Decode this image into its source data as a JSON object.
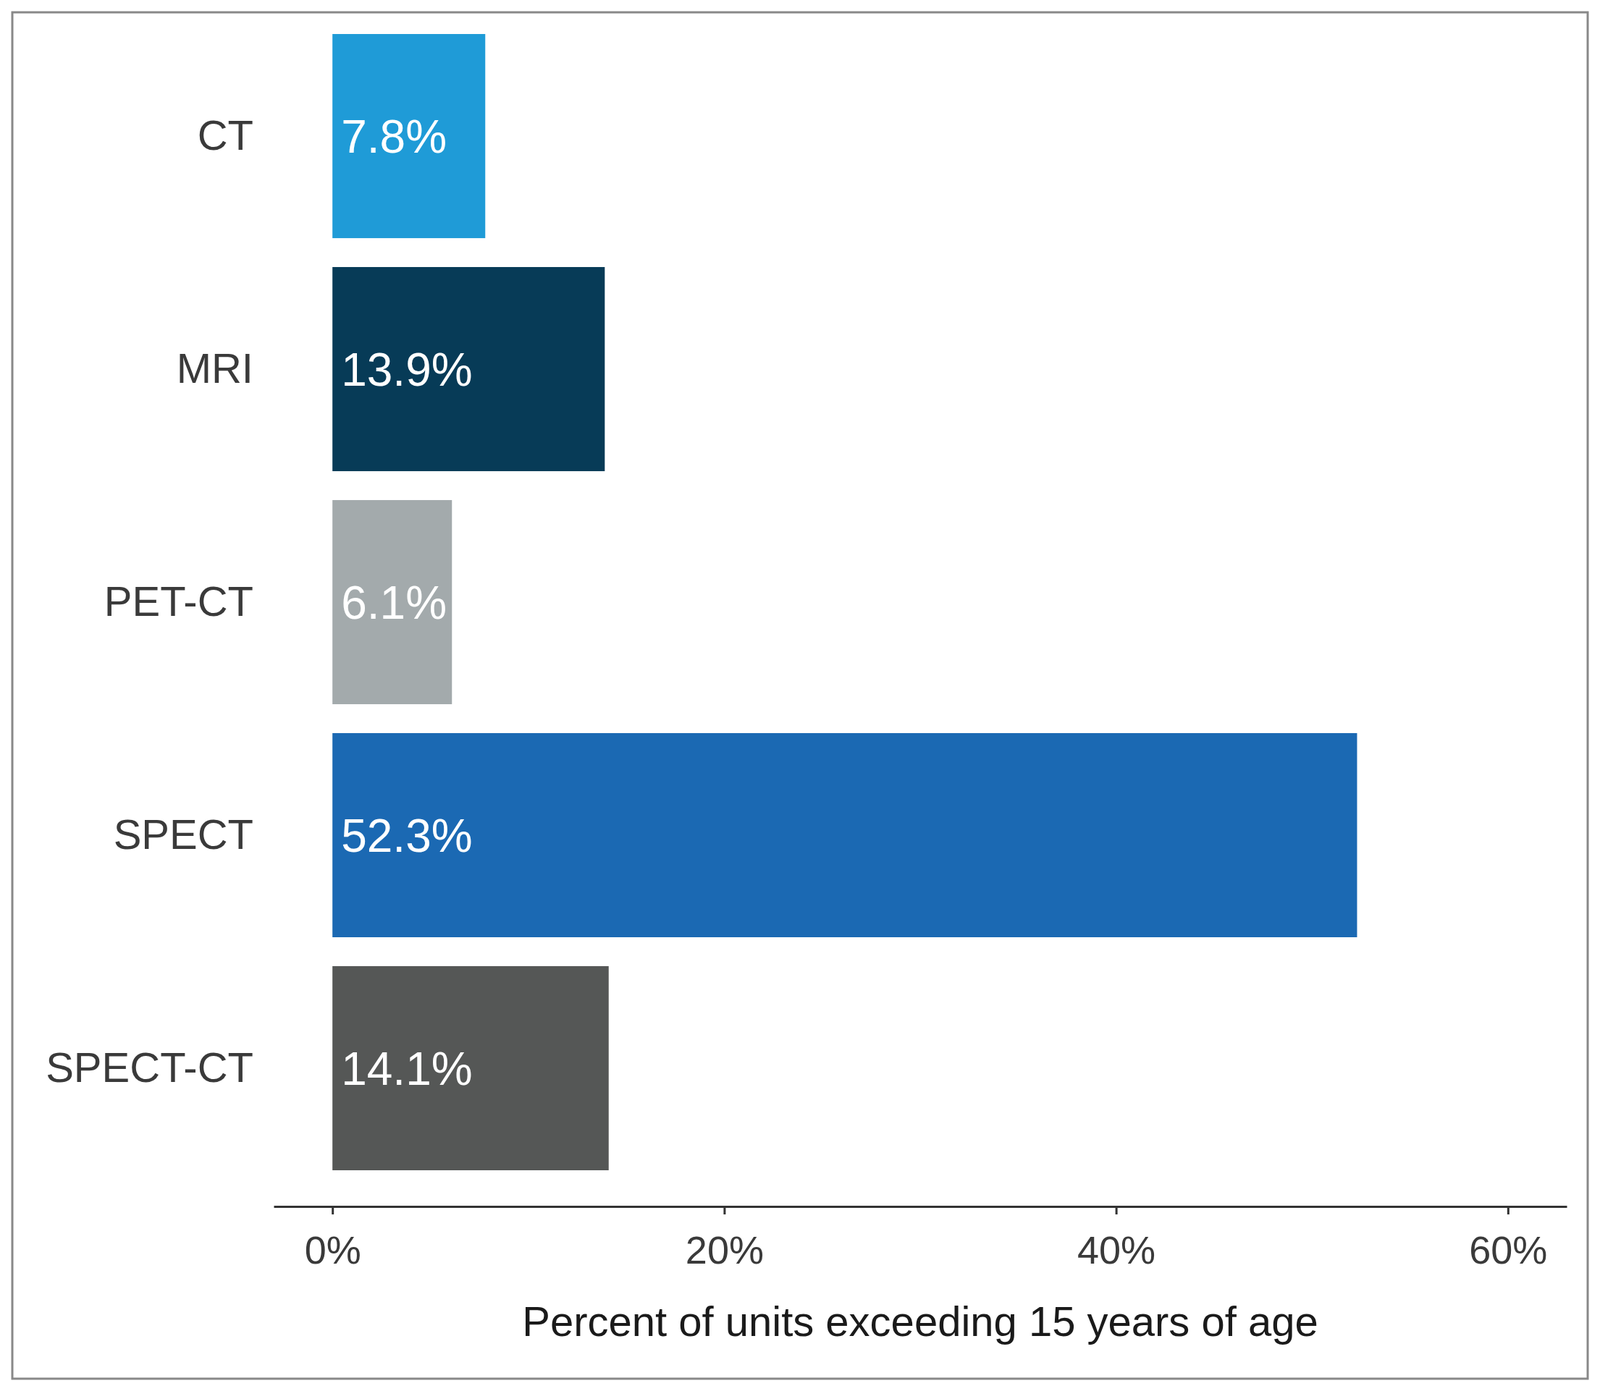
{
  "chart_data": {
    "type": "bar",
    "orientation": "horizontal",
    "categories": [
      "CT",
      "MRI",
      "PET-CT",
      "SPECT",
      "SPECT-CT"
    ],
    "values": [
      7.8,
      13.9,
      6.1,
      52.3,
      14.1
    ],
    "value_labels": [
      "7.8%",
      "13.9%",
      "6.1%",
      "52.3%",
      "14.1%"
    ],
    "colors": [
      "#1f9bd7",
      "#073b57",
      "#a3aaac",
      "#1b69b3",
      "#555756"
    ],
    "x_label": "Percent of units exceeding 15 years of age",
    "xlim": [
      -3,
      63
    ],
    "xticks": [
      {
        "value": 0,
        "label": "0%"
      },
      {
        "value": 20,
        "label": "20%"
      },
      {
        "value": 40,
        "label": "40%"
      },
      {
        "value": 60,
        "label": "60%"
      }
    ],
    "data_labels": true,
    "grid": false
  }
}
